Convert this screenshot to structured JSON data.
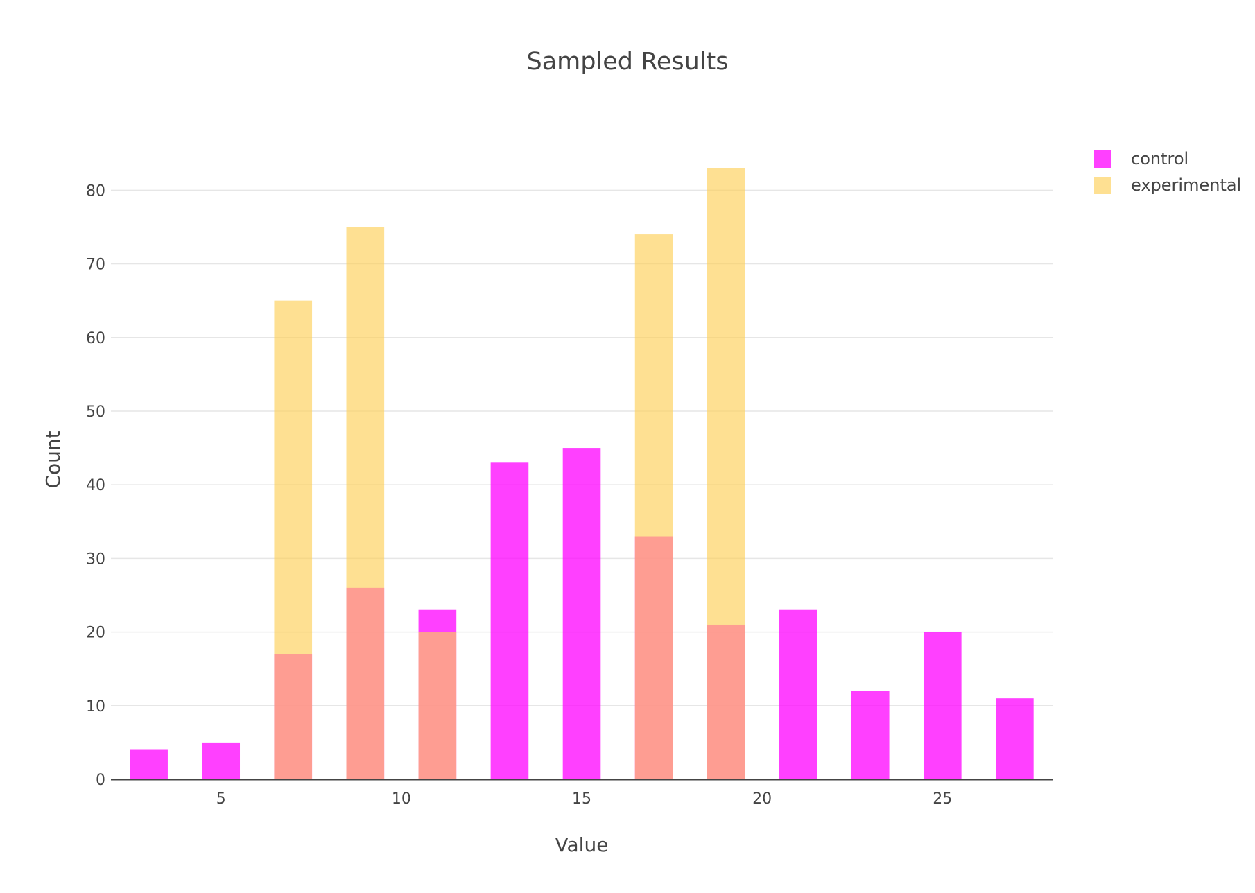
{
  "chart_data": {
    "type": "bar",
    "title": "Sampled Results",
    "xlabel": "Value",
    "ylabel": "Count",
    "barmode": "overlay",
    "x": [
      3,
      5,
      7,
      9,
      11,
      13,
      15,
      17,
      19,
      21,
      23,
      25,
      27
    ],
    "bar_width": 1.05,
    "xlim": [
      1.95,
      28.05
    ],
    "ylim": [
      0,
      87
    ],
    "xticks": [
      5,
      10,
      15,
      20,
      25
    ],
    "yticks": [
      0,
      10,
      20,
      30,
      40,
      50,
      60,
      70,
      80
    ],
    "grid": true,
    "legend_position": "top-right",
    "series": [
      {
        "name": "control",
        "color": "#ff00ff",
        "opacity": 0.75,
        "values": [
          4,
          5,
          17,
          26,
          23,
          43,
          45,
          33,
          21,
          23,
          12,
          20,
          11
        ]
      },
      {
        "name": "experimental",
        "color": "#fdcf58",
        "opacity": 0.65,
        "values": [
          0,
          0,
          65,
          75,
          20,
          0,
          0,
          74,
          83,
          0,
          0,
          0,
          0
        ]
      }
    ]
  },
  "colors": {
    "text": "#444444",
    "grid": "#e6e6e6",
    "axis_line": "#444444"
  }
}
